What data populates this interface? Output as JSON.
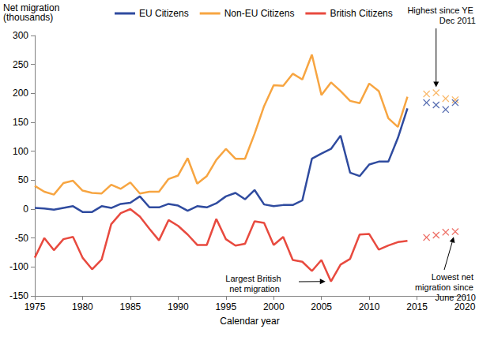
{
  "chart_data": {
    "type": "line",
    "y_label": "Net migration (thousands)",
    "x_label": "Calendar year",
    "x": [
      1975,
      1976,
      1977,
      1978,
      1979,
      1980,
      1981,
      1982,
      1983,
      1984,
      1985,
      1986,
      1987,
      1988,
      1989,
      1990,
      1991,
      1992,
      1993,
      1994,
      1995,
      1996,
      1997,
      1998,
      1999,
      2000,
      2001,
      2002,
      2003,
      2004,
      2005,
      2006,
      2007,
      2008,
      2009,
      2010,
      2011,
      2012,
      2013,
      2014,
      2016,
      2017,
      2018,
      2019
    ],
    "series": [
      {
        "name": "EU Citizens",
        "color": "#2f4b9f",
        "type": "line",
        "values": [
          2,
          1,
          -1,
          2,
          5,
          -5,
          -5,
          5,
          2,
          9,
          11,
          22,
          3,
          3,
          9,
          6,
          -3,
          5,
          3,
          10,
          22,
          28,
          17,
          33,
          8,
          5,
          7,
          7,
          15,
          87,
          96,
          104,
          127,
          63,
          57,
          77,
          82,
          82,
          123,
          174,
          null,
          null,
          null,
          null
        ]
      },
      {
        "name": "Non-EU Citizens",
        "color": "#f7a541",
        "type": "line",
        "values": [
          40,
          30,
          25,
          45,
          49,
          32,
          28,
          27,
          42,
          35,
          46,
          27,
          30,
          30,
          52,
          58,
          88,
          44,
          57,
          85,
          104,
          87,
          87,
          130,
          178,
          214,
          213,
          234,
          224,
          267,
          197,
          219,
          204,
          187,
          183,
          217,
          204,
          157,
          142,
          194,
          null,
          null,
          null,
          null
        ]
      },
      {
        "name": "British Citizens",
        "color": "#e84a3f",
        "type": "line",
        "values": [
          -84,
          -50,
          -71,
          -52,
          -48,
          -84,
          -104,
          -87,
          -26,
          -7,
          0,
          -13,
          -34,
          -54,
          -19,
          -29,
          -44,
          -62,
          -62,
          -17,
          -52,
          -63,
          -60,
          -21,
          -24,
          -62,
          -48,
          -88,
          -91,
          -107,
          -88,
          -125,
          -96,
          -86,
          -44,
          -43,
          -70,
          -63,
          -57,
          -55,
          null,
          null,
          null,
          null
        ]
      },
      {
        "color": "#f7a541",
        "type": "scatter",
        "marker": "x",
        "values": [
          null,
          null,
          null,
          null,
          null,
          null,
          null,
          null,
          null,
          null,
          null,
          null,
          null,
          null,
          null,
          null,
          null,
          null,
          null,
          null,
          null,
          null,
          null,
          null,
          null,
          null,
          null,
          null,
          null,
          null,
          null,
          null,
          null,
          null,
          null,
          null,
          null,
          null,
          null,
          null,
          199,
          201,
          191,
          189
        ]
      },
      {
        "color": "#2f4b9f",
        "type": "scatter",
        "marker": "x",
        "values": [
          null,
          null,
          null,
          null,
          null,
          null,
          null,
          null,
          null,
          null,
          null,
          null,
          null,
          null,
          null,
          null,
          null,
          null,
          null,
          null,
          null,
          null,
          null,
          null,
          null,
          null,
          null,
          null,
          null,
          null,
          null,
          null,
          null,
          null,
          null,
          null,
          null,
          null,
          null,
          null,
          184,
          180,
          172,
          184
        ]
      },
      {
        "color": "#e84a3f",
        "type": "scatter",
        "marker": "x",
        "values": [
          null,
          null,
          null,
          null,
          null,
          null,
          null,
          null,
          null,
          null,
          null,
          null,
          null,
          null,
          null,
          null,
          null,
          null,
          null,
          null,
          null,
          null,
          null,
          null,
          null,
          null,
          null,
          null,
          null,
          null,
          null,
          null,
          null,
          null,
          null,
          null,
          null,
          null,
          null,
          null,
          -49,
          -45,
          -40,
          -39
        ]
      }
    ],
    "xlim": [
      1975,
      2020
    ],
    "xticks": [
      1975,
      1980,
      1985,
      1990,
      1995,
      2000,
      2005,
      2010,
      2015,
      2020
    ],
    "ylim": [
      -150,
      300
    ],
    "yticks": [
      -150,
      -100,
      -50,
      0,
      50,
      100,
      150,
      200,
      250,
      300
    ],
    "grid": false,
    "legend": "top",
    "annotations": [
      {
        "text": "Highest since YE Dec 2011",
        "x": 2017,
        "y": 201
      },
      {
        "text": "Largest British net migration",
        "x": 2006,
        "y": -125
      },
      {
        "text": "Lowest net migration since June 2010",
        "x": 2019,
        "y": -39
      }
    ]
  }
}
